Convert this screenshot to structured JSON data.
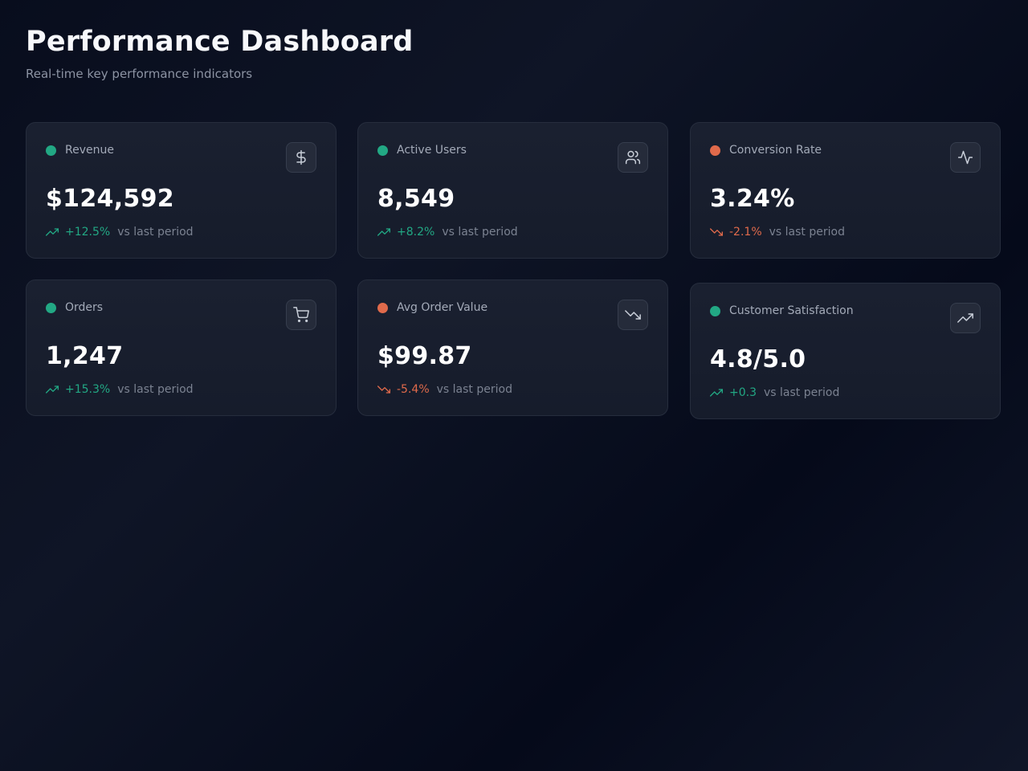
{
  "header": {
    "title": "Performance Dashboard",
    "subtitle": "Real-time key performance indicators"
  },
  "colors": {
    "positive": "#22a884",
    "negative": "#e06a4b",
    "background": "#0b1020",
    "card": "#1a2030"
  },
  "cards": [
    {
      "label": "Revenue",
      "value": "$124,592",
      "change": "+12.5%",
      "comparison": "vs last period",
      "trend": "up",
      "status_color": "#22a884",
      "icon": "dollar-icon"
    },
    {
      "label": "Active Users",
      "value": "8,549",
      "change": "+8.2%",
      "comparison": "vs last period",
      "trend": "up",
      "status_color": "#22a884",
      "icon": "users-icon"
    },
    {
      "label": "Conversion Rate",
      "value": "3.24%",
      "change": "-2.1%",
      "comparison": "vs last period",
      "trend": "down",
      "status_color": "#e06a4b",
      "icon": "activity-icon"
    },
    {
      "label": "Orders",
      "value": "1,247",
      "change": "+15.3%",
      "comparison": "vs last period",
      "trend": "up",
      "status_color": "#22a884",
      "icon": "shopping-cart-icon"
    },
    {
      "label": "Avg Order Value",
      "value": "$99.87",
      "change": "-5.4%",
      "comparison": "vs last period",
      "trend": "down",
      "status_color": "#e06a4b",
      "icon": "trending-down-icon"
    },
    {
      "label": "Customer Satisfaction",
      "value": "4.8/5.0",
      "change": "+0.3",
      "comparison": "vs last period",
      "trend": "up",
      "status_color": "#22a884",
      "icon": "trending-up-icon"
    }
  ]
}
